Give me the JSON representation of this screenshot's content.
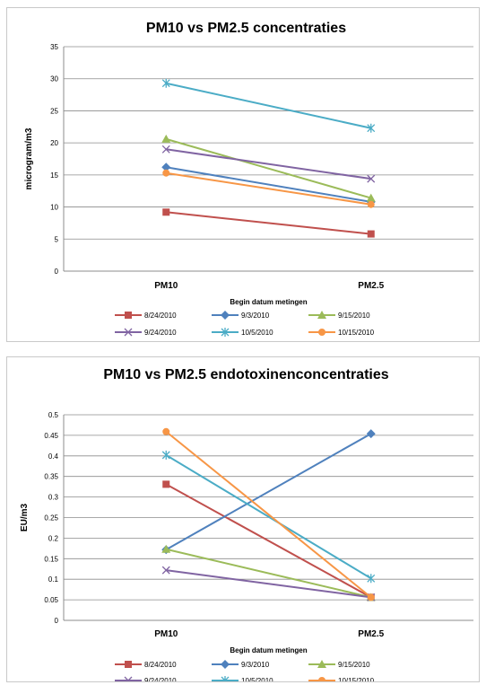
{
  "chart_data": [
    {
      "type": "line",
      "title": "PM10 vs PM2.5  concentraties",
      "xlabel": "Begin datum metingen",
      "ylabel": "microgram/m3",
      "categories": [
        "PM10",
        "PM2.5"
      ],
      "ylim": [
        0,
        35
      ],
      "yticks": [
        0,
        5,
        10,
        15,
        20,
        25,
        30,
        35
      ],
      "grid": true,
      "legend_position": "bottom",
      "series": [
        {
          "name": "8/24/2010",
          "values": [
            9.2,
            5.8
          ],
          "color": "#c0504d",
          "marker": "square"
        },
        {
          "name": "9/3/2010",
          "values": [
            16.2,
            10.8
          ],
          "color": "#4f81bd",
          "marker": "diamond"
        },
        {
          "name": "9/15/2010",
          "values": [
            20.6,
            11.4
          ],
          "color": "#9bbb59",
          "marker": "triangle"
        },
        {
          "name": "9/24/2010",
          "values": [
            19.0,
            14.4
          ],
          "color": "#8064a2",
          "marker": "x"
        },
        {
          "name": "10/5/2010",
          "values": [
            29.3,
            22.3
          ],
          "color": "#4bacc6",
          "marker": "star"
        },
        {
          "name": "10/15/2010",
          "values": [
            15.3,
            10.4
          ],
          "color": "#f79646",
          "marker": "circle"
        }
      ]
    },
    {
      "type": "line",
      "title": "PM10 vs PM2.5 endotoxinenconcentraties",
      "xlabel": "Begin datum metingen",
      "ylabel": "EU/m3",
      "categories": [
        "PM10",
        "PM2.5"
      ],
      "ylim": [
        0,
        0.5
      ],
      "yticks": [
        "0",
        "0.05",
        "0.1",
        "0.15",
        "0.2",
        "0.25",
        "0.3",
        "0.35",
        "0.4",
        "0.45",
        "0.5"
      ],
      "grid": true,
      "legend_position": "bottom",
      "series": [
        {
          "name": "8/24/2010",
          "values": [
            0.331,
            0.056
          ],
          "color": "#c0504d",
          "marker": "square"
        },
        {
          "name": "9/3/2010",
          "values": [
            0.172,
            0.454
          ],
          "color": "#4f81bd",
          "marker": "diamond"
        },
        {
          "name": "9/15/2010",
          "values": [
            0.173,
            0.056
          ],
          "color": "#9bbb59",
          "marker": "triangle"
        },
        {
          "name": "9/24/2010",
          "values": [
            0.122,
            0.056
          ],
          "color": "#8064a2",
          "marker": "x"
        },
        {
          "name": "10/5/2010",
          "values": [
            0.402,
            0.102
          ],
          "color": "#4bacc6",
          "marker": "star"
        },
        {
          "name": "10/15/2010",
          "values": [
            0.459,
            0.056
          ],
          "color": "#f79646",
          "marker": "circle"
        }
      ]
    }
  ]
}
